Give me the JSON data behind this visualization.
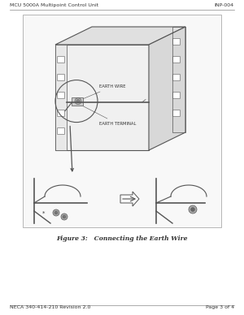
{
  "page_bg": "#ffffff",
  "header_left": "MCU 5000A Multipoint Control Unit",
  "header_right": "INP-004",
  "footer_left": "NECA 340-414-210 Revision 2.0",
  "footer_right": "Page 3 of 4",
  "figure_caption": "Figure 3:   Connecting the Earth Wire",
  "label_earth_wire": "EARTH WIRE",
  "label_earth_terminal": "EARTH TERMINAL",
  "header_line_color": "#888888",
  "footer_line_color": "#888888",
  "line_color": "#555555",
  "text_color": "#333333",
  "header_fontsize": 4.5,
  "footer_fontsize": 4.5,
  "caption_fontsize": 5.5,
  "label_fontsize": 3.8
}
